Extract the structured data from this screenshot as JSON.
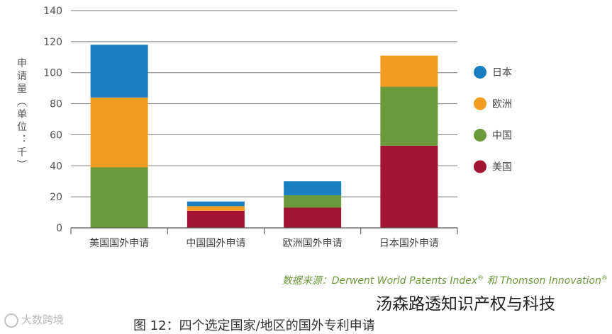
{
  "chart_data": {
    "type": "bar",
    "stacked": true,
    "categories": [
      "美国国外申请",
      "中国国外申请",
      "欧洲国外申请",
      "日本国外申请"
    ],
    "series": [
      {
        "name": "美国",
        "color": "#a31432",
        "values": [
          0,
          11,
          13,
          53
        ]
      },
      {
        "name": "中国",
        "color": "#6a9a3a",
        "values": [
          39,
          0,
          8,
          38
        ]
      },
      {
        "name": "欧洲",
        "color": "#f39c1f",
        "values": [
          45,
          3,
          0,
          20
        ]
      },
      {
        "name": "日本",
        "color": "#1a7fc1",
        "values": [
          34,
          3,
          9,
          0
        ]
      }
    ],
    "ylabel": "申请量（单位：千）",
    "ylim": [
      0,
      140
    ],
    "yticks": [
      0,
      20,
      40,
      60,
      80,
      100,
      120,
      140
    ],
    "grid": true,
    "legend_position": "right",
    "legend_order": [
      "日本",
      "欧洲",
      "中国",
      "美国"
    ]
  },
  "source": {
    "prefix": "数据来源：",
    "part1": "Derwent World Patents Index",
    "reg1": "®",
    "conj": " 和 ",
    "part2": "Thomson Innovation",
    "reg2": "®"
  },
  "watermark_right": "汤森路透知识产权与科技",
  "watermark_left": "大数跨境",
  "figure_title": "图 12：四个选定国家/地区的国外专利申请"
}
